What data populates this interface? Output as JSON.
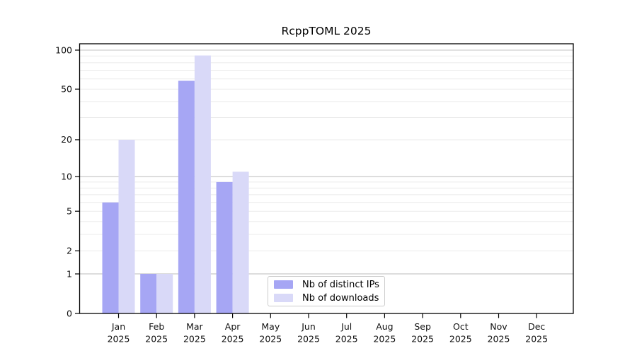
{
  "title": "RcppTOML 2025",
  "chart_data": {
    "type": "bar",
    "title": "RcppTOML 2025",
    "xlabel": "",
    "ylabel": "",
    "year": "2025",
    "categories": [
      "Jan",
      "Feb",
      "Mar",
      "Apr",
      "May",
      "Jun",
      "Jul",
      "Aug",
      "Sep",
      "Oct",
      "Nov",
      "Dec"
    ],
    "series": [
      {
        "name": "Nb of distinct IPs",
        "color": "#a6a6f4",
        "values": [
          6,
          1,
          58,
          9,
          0,
          0,
          0,
          0,
          0,
          0,
          0,
          0
        ]
      },
      {
        "name": "Nb of downloads",
        "color": "#d9d9f8",
        "values": [
          20,
          1,
          91,
          11,
          0,
          0,
          0,
          0,
          0,
          0,
          0,
          0
        ]
      }
    ],
    "yscale": "log10(value+1)",
    "ylim": [
      0,
      112
    ],
    "yticks": [
      0,
      1,
      2,
      5,
      10,
      20,
      50,
      100
    ],
    "major_gridlines": [
      1,
      10,
      100
    ],
    "minor_gridlines": [
      2,
      3,
      4,
      5,
      6,
      7,
      8,
      9,
      20,
      30,
      40,
      50,
      60,
      70,
      80,
      90
    ],
    "grid": "horizontal",
    "legend_position": "inside bottom-center",
    "colors": {
      "axis": "#000000",
      "major_grid": "#c3c3c3",
      "minor_grid": "#ebebeb",
      "text": "#111111",
      "background": "#ffffff"
    }
  }
}
